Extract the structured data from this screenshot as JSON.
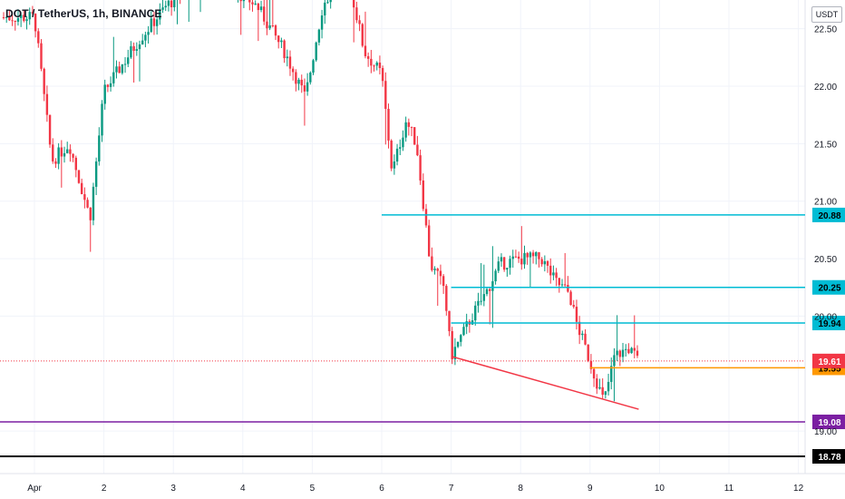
{
  "title": "DOT / TetherUS, 1h, BINANCE",
  "currency": "USDT",
  "chart_data": {
    "type": "candlestick",
    "symbol": "DOT / TetherUS",
    "interval": "1h",
    "exchange": "BINANCE",
    "y_range": [
      18.63,
      22.75
    ],
    "y_ticks": [
      "22.50",
      "22.00",
      "21.50",
      "21.00",
      "20.50",
      "20.00",
      "19.00"
    ],
    "x_ticks": [
      "Apr",
      "2",
      "3",
      "4",
      "5",
      "6",
      "7",
      "8",
      "9",
      "10",
      "11",
      "12"
    ],
    "grid": true,
    "horizontal_levels": [
      {
        "value": 20.88,
        "label": "20.88",
        "color": "#00bcd4",
        "x_start": "6"
      },
      {
        "value": 20.25,
        "label": "20.25",
        "color": "#00bcd4",
        "x_start": "7"
      },
      {
        "value": 19.94,
        "label": "19.94",
        "color": "#00bcd4",
        "x_start": "7"
      },
      {
        "value": 19.55,
        "label": "19.55",
        "color": "#ff9800",
        "x_start": "9"
      },
      {
        "value": 19.08,
        "label": "19.08",
        "color": "#7b1fa2",
        "x_start": "Apr"
      },
      {
        "value": 18.78,
        "label": "18.78",
        "color": "#000000",
        "x_start": "Apr"
      }
    ],
    "last_price": {
      "value": 19.61,
      "label": "19.61",
      "color": "#f23645"
    },
    "trendline": {
      "from": [
        "7",
        19.65
      ],
      "to": [
        "9.7",
        19.19
      ],
      "color": "#f23645"
    },
    "key_prices": [
      {
        "at": "Apr",
        "value": 22.6
      },
      {
        "at": "1.25",
        "value": 21.35
      },
      {
        "at": "1.5",
        "value": 21.5
      },
      {
        "at": "1.8",
        "value": 20.85
      },
      {
        "at": "2.0",
        "value": 21.95
      },
      {
        "at": "2.5",
        "value": 22.4
      },
      {
        "at": "2.9",
        "value": 22.7
      },
      {
        "at": "3.5",
        "value": 23.0
      },
      {
        "at": "4.2",
        "value": 22.7
      },
      {
        "at": "4.6",
        "value": 22.3
      },
      {
        "at": "4.9",
        "value": 21.9
      },
      {
        "at": "5.15",
        "value": 22.7
      },
      {
        "at": "5.5",
        "value": 23.0
      },
      {
        "at": "5.75",
        "value": 22.3
      },
      {
        "at": "6.0",
        "value": 22.1
      },
      {
        "at": "6.15",
        "value": 21.25
      },
      {
        "at": "6.35",
        "value": 21.7
      },
      {
        "at": "6.5",
        "value": 21.5
      },
      {
        "at": "6.7",
        "value": 20.45
      },
      {
        "at": "6.9",
        "value": 20.25
      },
      {
        "at": "7.0",
        "value": 19.65
      },
      {
        "at": "7.3",
        "value": 20.0
      },
      {
        "at": "7.5",
        "value": 20.2
      },
      {
        "at": "7.7",
        "value": 20.45
      },
      {
        "at": "8.0",
        "value": 20.5
      },
      {
        "at": "8.3",
        "value": 20.5
      },
      {
        "at": "8.5",
        "value": 20.3
      },
      {
        "at": "8.7",
        "value": 20.2
      },
      {
        "at": "8.8",
        "value": 19.95
      },
      {
        "at": "9.0",
        "value": 19.6
      },
      {
        "at": "9.2",
        "value": 19.25
      },
      {
        "at": "9.35",
        "value": 19.65
      },
      {
        "at": "9.55",
        "value": 19.72
      },
      {
        "at": "9.7",
        "value": 19.61
      }
    ]
  }
}
